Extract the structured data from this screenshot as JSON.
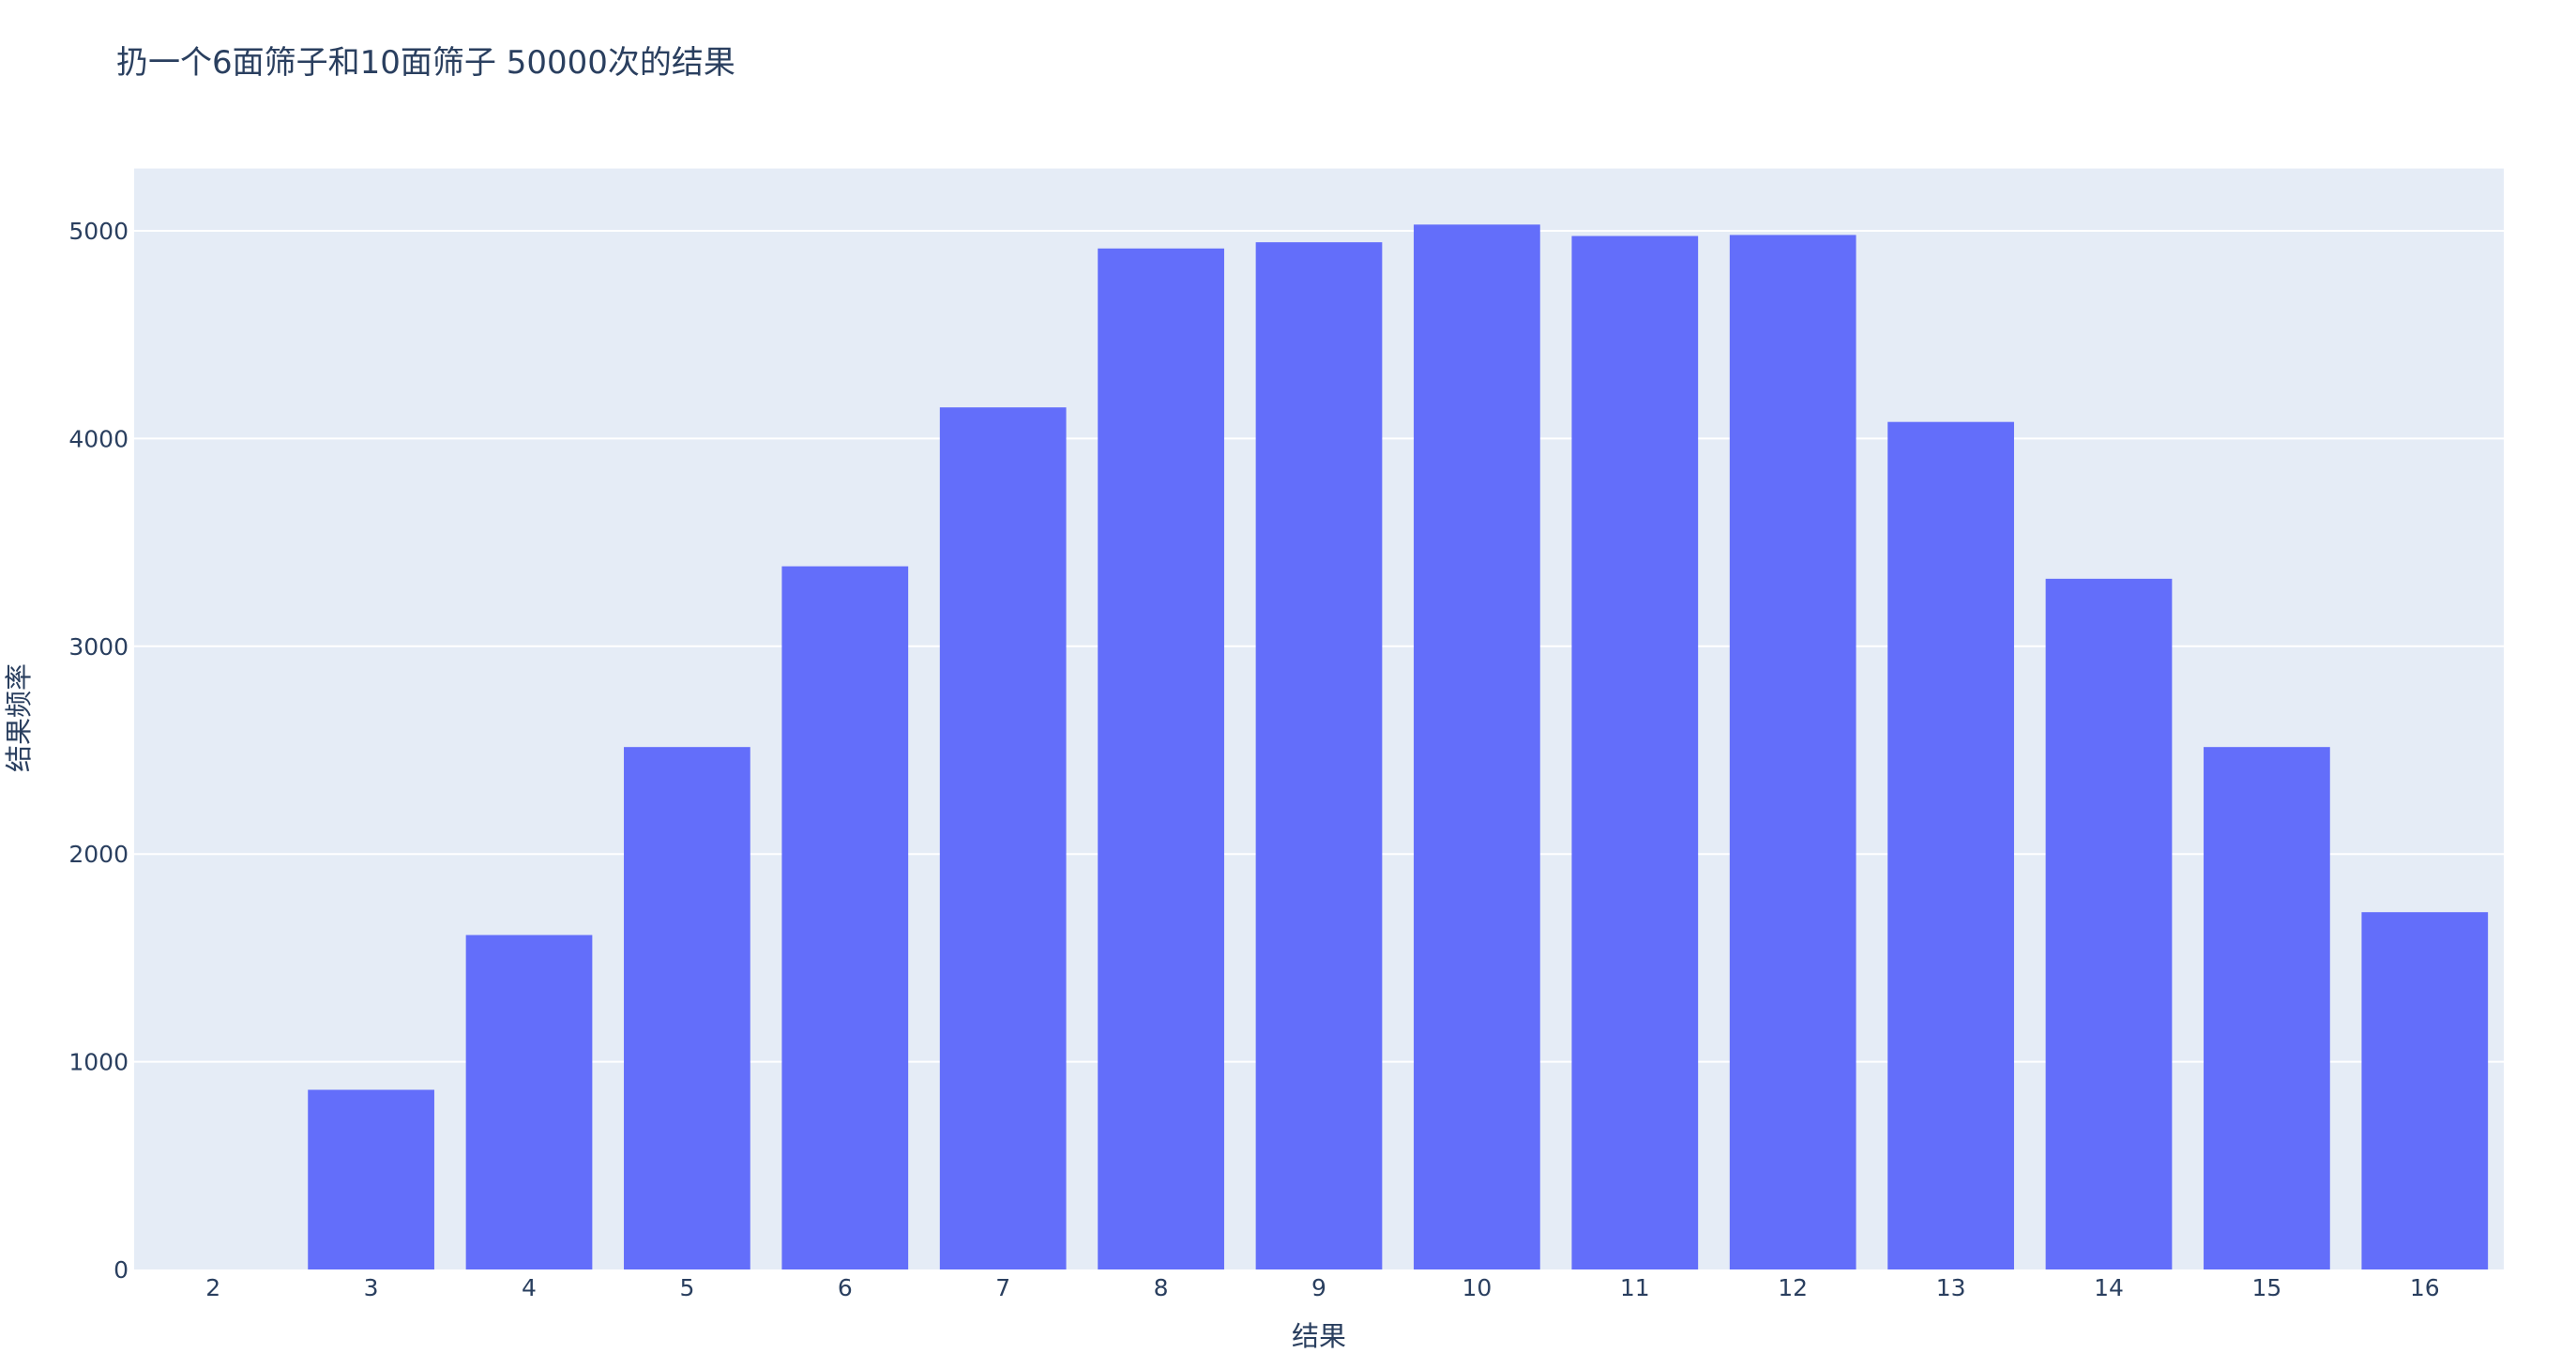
{
  "chart_data": {
    "type": "bar",
    "title": "扔一个6面筛子和10面筛子 50000次的结果",
    "xlabel": "结果",
    "ylabel": "结果频率",
    "categories": [
      "2",
      "3",
      "4",
      "5",
      "6",
      "7",
      "8",
      "9",
      "10",
      "11",
      "12",
      "13",
      "14",
      "15",
      "16"
    ],
    "values": [
      0,
      865,
      1610,
      2515,
      3385,
      4150,
      4915,
      4945,
      5030,
      4975,
      4980,
      4080,
      3325,
      2515,
      1720
    ],
    "ylim": [
      0,
      5300
    ],
    "yticks": [
      0,
      1000,
      2000,
      3000,
      4000,
      5000
    ],
    "ytick_labels": [
      "0",
      "1000",
      "2000",
      "3000",
      "4000",
      "5000"
    ],
    "grid": true,
    "colors": {
      "bar": "#636efa",
      "plot_background": "#e5ecf6",
      "grid": "#ffffff",
      "text": "#2a3f5f"
    }
  }
}
